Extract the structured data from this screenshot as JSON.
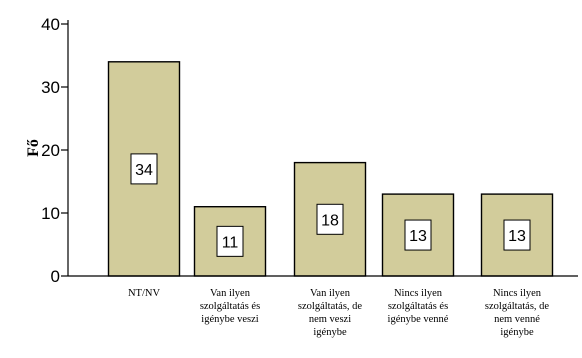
{
  "chart_data": {
    "type": "bar",
    "title": "",
    "xlabel": "",
    "ylabel": "Fő",
    "ylim": [
      0,
      40
    ],
    "yticks": [
      0,
      10,
      20,
      30,
      40
    ],
    "grid": false,
    "colors": {
      "bar": "#d2cc9b",
      "edge": "#000000",
      "label_box": "#ffffff"
    },
    "categories": [
      [
        "NT/NV"
      ],
      [
        "Van ilyen",
        "szolgáltatás és",
        "igénybe veszi"
      ],
      [
        "Van ilyen",
        "szolgáltatás, de",
        "nem veszi",
        "igénybe"
      ],
      [
        "Nincs ilyen",
        "szolgáltatás és",
        "igénybe  venné"
      ],
      [
        "Nincs ilyen",
        "szolgáltatás, de",
        "nem venné",
        "igénybe"
      ]
    ],
    "values": [
      34,
      11,
      18,
      13,
      13
    ]
  }
}
